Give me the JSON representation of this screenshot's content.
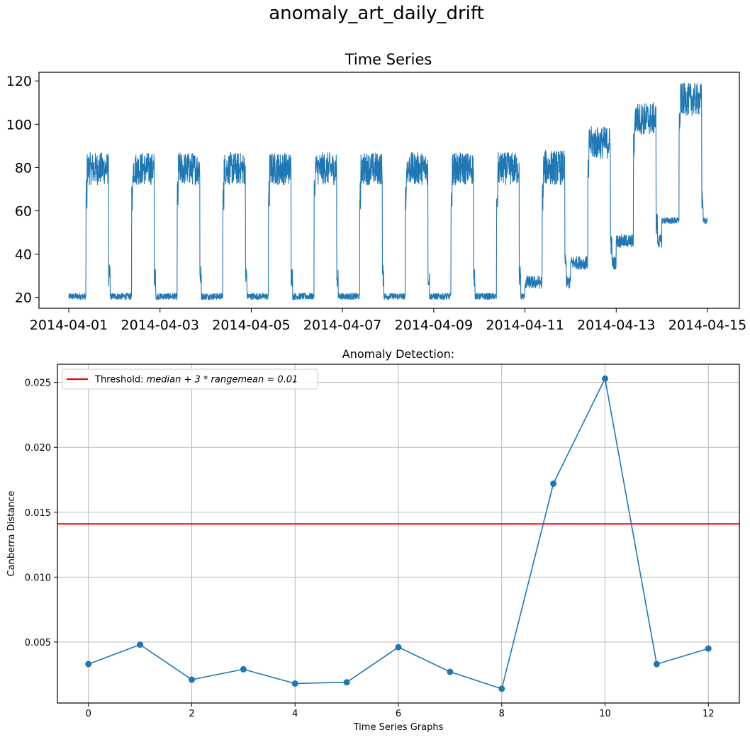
{
  "figure": {
    "title": "anomaly_art_daily_drift"
  },
  "chart_data": [
    {
      "type": "line",
      "title": "Time Series",
      "xlabel": "",
      "ylabel": "",
      "x_ticks": [
        "2014-04-01",
        "2014-04-03",
        "2014-04-05",
        "2014-04-07",
        "2014-04-09",
        "2014-04-11",
        "2014-04-13",
        "2014-04-15"
      ],
      "xlim": [
        "2014-04-01",
        "2014-04-15"
      ],
      "y_ticks": [
        20,
        40,
        60,
        80,
        100,
        120
      ],
      "ylim": [
        15,
        124
      ],
      "grid": false,
      "color": "#1f77b4",
      "daily_cycles": [
        {
          "day": "2014-04-01",
          "low": [
            19,
            22
          ],
          "high": [
            72,
            87
          ]
        },
        {
          "day": "2014-04-02",
          "low": [
            19,
            22
          ],
          "high": [
            72,
            87
          ]
        },
        {
          "day": "2014-04-03",
          "low": [
            19,
            22
          ],
          "high": [
            72,
            87
          ]
        },
        {
          "day": "2014-04-04",
          "low": [
            19,
            22
          ],
          "high": [
            72,
            87
          ]
        },
        {
          "day": "2014-04-05",
          "low": [
            19,
            22
          ],
          "high": [
            72,
            87
          ]
        },
        {
          "day": "2014-04-06",
          "low": [
            19,
            22
          ],
          "high": [
            72,
            87
          ]
        },
        {
          "day": "2014-04-07",
          "low": [
            19,
            22
          ],
          "high": [
            72,
            87
          ]
        },
        {
          "day": "2014-04-08",
          "low": [
            19,
            22
          ],
          "high": [
            72,
            87
          ]
        },
        {
          "day": "2014-04-09",
          "low": [
            19,
            22
          ],
          "high": [
            72,
            87
          ]
        },
        {
          "day": "2014-04-10",
          "low": [
            19,
            22
          ],
          "high": [
            72,
            87
          ]
        },
        {
          "day": "2014-04-11",
          "low": [
            24,
            30
          ],
          "high": [
            72,
            88
          ]
        },
        {
          "day": "2014-04-12",
          "low": [
            33,
            39
          ],
          "high": [
            84,
            99
          ]
        },
        {
          "day": "2014-04-13",
          "low": [
            43,
            49
          ],
          "high": [
            95,
            110
          ]
        },
        {
          "day": "2014-04-14",
          "low": [
            54,
            57
          ],
          "high": [
            104,
            119
          ]
        }
      ]
    },
    {
      "type": "line",
      "title": "Anomaly Detection:",
      "xlabel": "Time Series Graphs",
      "ylabel": "Canberra Distance",
      "x_ticks": [
        0,
        2,
        4,
        6,
        8,
        10,
        12
      ],
      "xlim": [
        -0.6,
        12.6
      ],
      "y_ticks": [
        0.005,
        0.01,
        0.015,
        0.02,
        0.025
      ],
      "y_tick_labels": [
        "0.005",
        "0.010",
        "0.015",
        "0.020",
        "0.025"
      ],
      "ylim": [
        0.0003,
        0.0264
      ],
      "grid": true,
      "legend": {
        "position": "top-left",
        "label_prefix": "Threshold: ",
        "label_math": "median + 3 * rangemean = 0.01"
      },
      "threshold": {
        "value": 0.0141,
        "color": "#ff0000"
      },
      "series": [
        {
          "color": "#1f77b4",
          "x": [
            0,
            1,
            2,
            3,
            4,
            5,
            6,
            7,
            8,
            9,
            10,
            11,
            12
          ],
          "values": [
            0.0033,
            0.0048,
            0.0021,
            0.0029,
            0.0018,
            0.0019,
            0.0046,
            0.0027,
            0.0014,
            0.0172,
            0.0253,
            0.0033,
            0.0045
          ]
        }
      ]
    }
  ]
}
